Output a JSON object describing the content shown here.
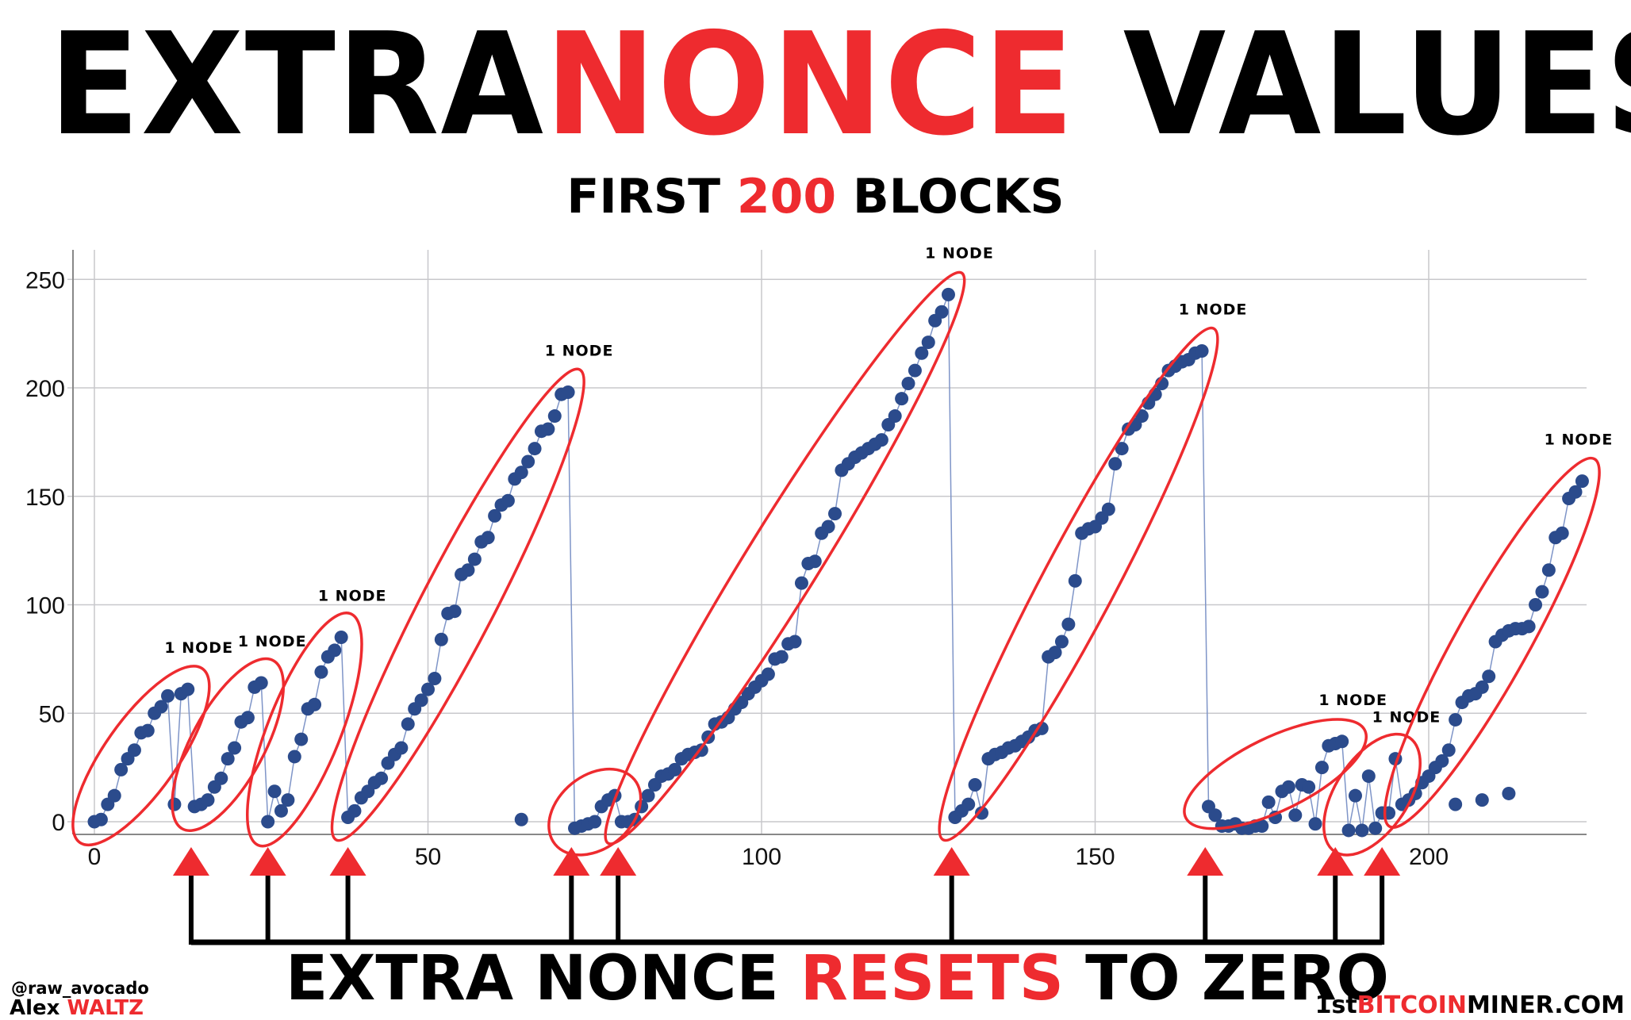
{
  "header": {
    "title_part1": "EXTRA",
    "title_part2": "NONCE",
    "title_part3": " VALUES",
    "subtitle_part1": "FIRST ",
    "subtitle_part2": "200",
    "subtitle_part3": " BLOCKS"
  },
  "footer": {
    "resets_part1": "EXTRA NONCE ",
    "resets_part2": "RESETS",
    "resets_part3": " TO ZERO",
    "handle": "@raw_avocado",
    "author_first": "Alex ",
    "author_last": "WALTZ",
    "site_part1": "1st",
    "site_part2": "BITCOIN",
    "site_part3": "MINER.COM"
  },
  "colors": {
    "accent_red": "#ee2b2f",
    "point_blue": "#2b4b8c",
    "line_blue": "#7f95c8",
    "grid": "#c8c8cc"
  },
  "chart_data": {
    "type": "scatter",
    "title": "",
    "xlabel": "",
    "ylabel": "",
    "xlim": [
      -2,
      223
    ],
    "ylim": [
      -4,
      268
    ],
    "xticks": [
      0,
      50,
      100,
      150,
      200
    ],
    "yticks": [
      0,
      50,
      100,
      150,
      200,
      250
    ],
    "grid": true,
    "connecting_line": true,
    "points": [
      [
        0,
        0
      ],
      [
        1,
        1
      ],
      [
        2,
        8
      ],
      [
        3,
        12
      ],
      [
        4,
        24
      ],
      [
        5,
        29
      ],
      [
        6,
        33
      ],
      [
        7,
        41
      ],
      [
        8,
        42
      ],
      [
        9,
        50
      ],
      [
        10,
        53
      ],
      [
        11,
        58
      ],
      [
        12,
        8
      ],
      [
        13,
        59
      ],
      [
        14,
        61
      ],
      [
        15,
        7
      ],
      [
        16,
        8
      ],
      [
        17,
        10
      ],
      [
        18,
        16
      ],
      [
        19,
        20
      ],
      [
        20,
        29
      ],
      [
        21,
        34
      ],
      [
        22,
        46
      ],
      [
        23,
        48
      ],
      [
        24,
        62
      ],
      [
        25,
        64
      ],
      [
        26,
        0
      ],
      [
        27,
        14
      ],
      [
        28,
        5
      ],
      [
        29,
        10
      ],
      [
        30,
        30
      ],
      [
        31,
        38
      ],
      [
        32,
        52
      ],
      [
        33,
        54
      ],
      [
        34,
        69
      ],
      [
        35,
        76
      ],
      [
        36,
        79
      ],
      [
        37,
        85
      ],
      [
        38,
        2
      ],
      [
        39,
        5
      ],
      [
        40,
        11
      ],
      [
        41,
        14
      ],
      [
        42,
        18
      ],
      [
        43,
        20
      ],
      [
        44,
        27
      ],
      [
        45,
        31
      ],
      [
        46,
        34
      ],
      [
        47,
        45
      ],
      [
        48,
        52
      ],
      [
        49,
        56
      ],
      [
        50,
        61
      ],
      [
        51,
        66
      ],
      [
        52,
        84
      ],
      [
        53,
        96
      ],
      [
        54,
        97
      ],
      [
        55,
        114
      ],
      [
        56,
        116
      ],
      [
        57,
        121
      ],
      [
        58,
        129
      ],
      [
        59,
        131
      ],
      [
        60,
        141
      ],
      [
        61,
        146
      ],
      [
        62,
        148
      ],
      [
        63,
        158
      ],
      [
        64,
        161
      ],
      [
        65,
        166
      ],
      [
        66,
        172
      ],
      [
        67,
        180
      ],
      [
        68,
        181
      ],
      [
        69,
        187
      ],
      [
        70,
        197
      ],
      [
        71,
        198
      ],
      [
        72,
        -3
      ],
      [
        73,
        -2
      ],
      [
        74,
        -1
      ],
      [
        75,
        0
      ],
      [
        76,
        7
      ],
      [
        77,
        10
      ],
      [
        78,
        12
      ],
      [
        79,
        0
      ],
      [
        80,
        0
      ],
      [
        81,
        1
      ],
      [
        82,
        7
      ],
      [
        83,
        12
      ],
      [
        84,
        17
      ],
      [
        85,
        21
      ],
      [
        86,
        22
      ],
      [
        87,
        24
      ],
      [
        88,
        29
      ],
      [
        89,
        31
      ],
      [
        90,
        32
      ],
      [
        91,
        33
      ],
      [
        92,
        39
      ],
      [
        93,
        45
      ],
      [
        94,
        46
      ],
      [
        95,
        48
      ],
      [
        96,
        52
      ],
      [
        97,
        55
      ],
      [
        98,
        59
      ],
      [
        99,
        62
      ],
      [
        100,
        65
      ],
      [
        101,
        68
      ],
      [
        102,
        75
      ],
      [
        103,
        76
      ],
      [
        104,
        82
      ],
      [
        105,
        83
      ],
      [
        106,
        110
      ],
      [
        107,
        119
      ],
      [
        108,
        120
      ],
      [
        109,
        133
      ],
      [
        110,
        136
      ],
      [
        111,
        142
      ],
      [
        112,
        162
      ],
      [
        113,
        165
      ],
      [
        114,
        168
      ],
      [
        115,
        170
      ],
      [
        116,
        172
      ],
      [
        117,
        174
      ],
      [
        118,
        176
      ],
      [
        119,
        183
      ],
      [
        120,
        187
      ],
      [
        121,
        195
      ],
      [
        122,
        202
      ],
      [
        123,
        208
      ],
      [
        124,
        216
      ],
      [
        125,
        221
      ],
      [
        126,
        231
      ],
      [
        127,
        235
      ],
      [
        128,
        243
      ],
      [
        129,
        2
      ],
      [
        130,
        5
      ],
      [
        131,
        8
      ],
      [
        132,
        17
      ],
      [
        133,
        4
      ],
      [
        134,
        29
      ],
      [
        135,
        31
      ],
      [
        136,
        32
      ],
      [
        137,
        34
      ],
      [
        138,
        35
      ],
      [
        139,
        37
      ],
      [
        140,
        39
      ],
      [
        141,
        42
      ],
      [
        142,
        43
      ],
      [
        143,
        76
      ],
      [
        144,
        78
      ],
      [
        145,
        83
      ],
      [
        146,
        91
      ],
      [
        147,
        111
      ],
      [
        148,
        133
      ],
      [
        149,
        135
      ],
      [
        150,
        136
      ],
      [
        151,
        140
      ],
      [
        152,
        144
      ],
      [
        153,
        165
      ],
      [
        154,
        172
      ],
      [
        155,
        181
      ],
      [
        156,
        183
      ],
      [
        157,
        187
      ],
      [
        158,
        193
      ],
      [
        159,
        197
      ],
      [
        160,
        202
      ],
      [
        161,
        208
      ],
      [
        162,
        210
      ],
      [
        163,
        212
      ],
      [
        164,
        213
      ],
      [
        165,
        216
      ],
      [
        166,
        217
      ],
      [
        167,
        7
      ],
      [
        168,
        3
      ],
      [
        169,
        -2
      ],
      [
        170,
        -2
      ],
      [
        171,
        -1
      ],
      [
        172,
        -3
      ],
      [
        173,
        -3
      ],
      [
        174,
        -2
      ],
      [
        175,
        -2
      ],
      [
        176,
        9
      ],
      [
        177,
        2
      ],
      [
        178,
        14
      ],
      [
        179,
        16
      ],
      [
        180,
        3
      ],
      [
        181,
        17
      ],
      [
        182,
        16
      ],
      [
        183,
        -1
      ],
      [
        184,
        25
      ],
      [
        185,
        35
      ],
      [
        186,
        36
      ],
      [
        187,
        37
      ],
      [
        188,
        -4
      ],
      [
        189,
        12
      ],
      [
        190,
        -4
      ],
      [
        191,
        21
      ],
      [
        192,
        -3
      ],
      [
        193,
        4
      ],
      [
        194,
        4
      ],
      [
        195,
        29
      ],
      [
        196,
        8
      ],
      [
        197,
        10
      ],
      [
        198,
        13
      ],
      [
        199,
        18
      ],
      [
        200,
        21
      ],
      [
        201,
        25
      ],
      [
        202,
        28
      ],
      [
        203,
        33
      ],
      [
        204,
        47
      ],
      [
        205,
        55
      ],
      [
        206,
        58
      ],
      [
        207,
        59
      ],
      [
        208,
        62
      ],
      [
        209,
        67
      ],
      [
        210,
        83
      ],
      [
        211,
        86
      ],
      [
        212,
        88
      ],
      [
        213,
        89
      ],
      [
        214,
        89
      ],
      [
        215,
        90
      ],
      [
        216,
        100
      ],
      [
        217,
        106
      ],
      [
        218,
        116
      ],
      [
        219,
        131
      ],
      [
        220,
        133
      ],
      [
        221,
        149
      ],
      [
        222,
        152
      ],
      [
        223,
        157
      ]
    ],
    "outliers": [
      [
        64,
        1
      ],
      [
        204,
        8
      ],
      [
        208,
        10
      ],
      [
        212,
        13
      ]
    ],
    "groups": [
      {
        "label": "1 NODE",
        "from": [
          0,
          0
        ],
        "to": [
          14,
          61
        ]
      },
      {
        "label": "1 NODE",
        "from": [
          15,
          7
        ],
        "to": [
          25,
          64
        ]
      },
      {
        "label": "1 NODE",
        "from": [
          26,
          0
        ],
        "to": [
          37,
          85
        ]
      },
      {
        "label": "1 NODE",
        "from": [
          38,
          2
        ],
        "to": [
          71,
          198
        ]
      },
      {
        "label": "",
        "from": [
          72,
          -3
        ],
        "to": [
          78,
          12
        ]
      },
      {
        "label": "1 NODE",
        "from": [
          79,
          0
        ],
        "to": [
          128,
          243
        ]
      },
      {
        "label": "1 NODE",
        "from": [
          129,
          2
        ],
        "to": [
          166,
          217
        ]
      },
      {
        "label": "1 NODE",
        "from": [
          167,
          7
        ],
        "to": [
          187,
          37
        ]
      },
      {
        "label": "1 NODE",
        "from": [
          188,
          -4
        ],
        "to": [
          195,
          29
        ]
      },
      {
        "label": "1 NODE",
        "from": [
          196,
          8
        ],
        "to": [
          223,
          157
        ]
      }
    ],
    "resets_at": [
      14.5,
      26,
      38,
      71.5,
      78.5,
      128.5,
      166.5,
      186,
      193
    ]
  }
}
